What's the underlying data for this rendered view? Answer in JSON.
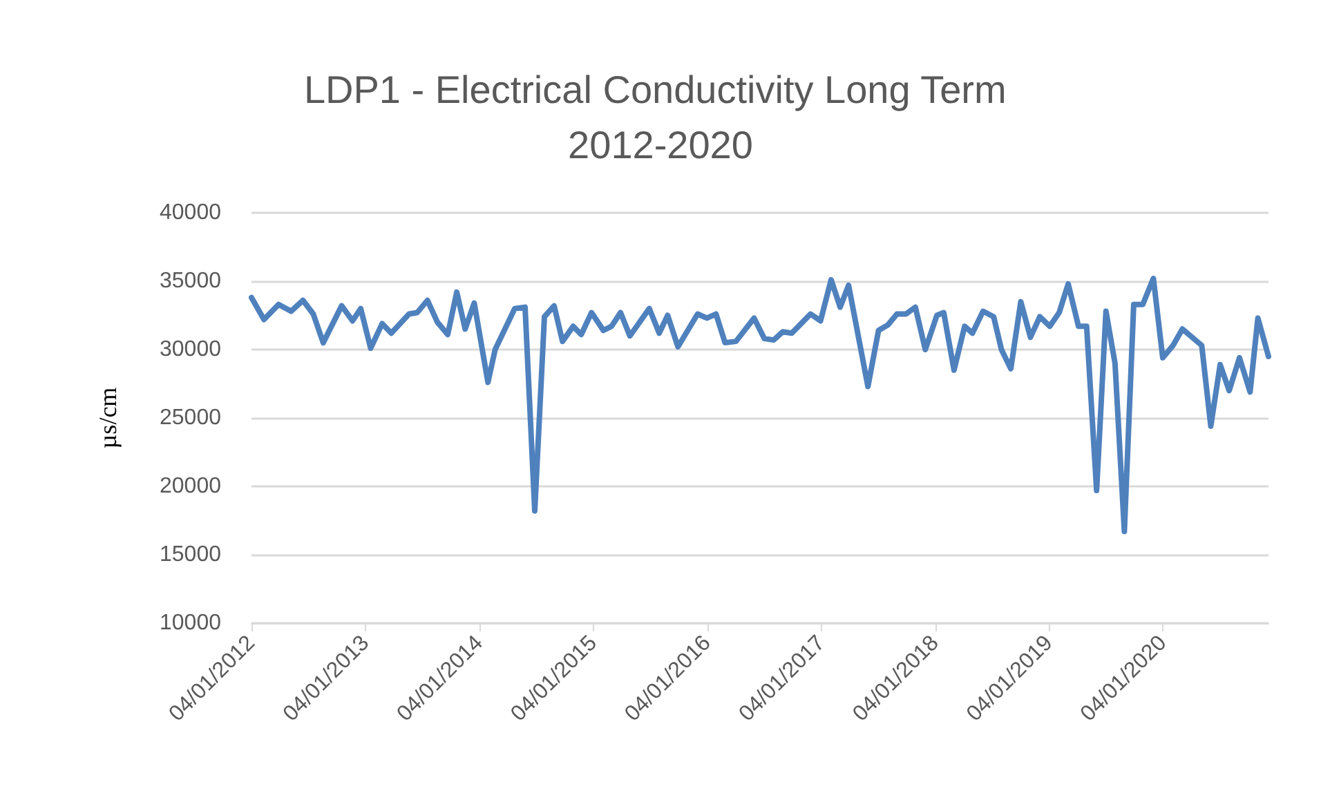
{
  "chart_data": {
    "type": "line",
    "title": "LDP1 - Electrical Conductivity Long Term 2012-2020",
    "ylabel": "µs/cm",
    "x": [
      "2012-01-04",
      "2012-02-13",
      "2012-03-31",
      "2012-05-10",
      "2012-06-17",
      "2012-07-20",
      "2012-08-21",
      "2012-10-19",
      "2012-11-23",
      "2012-12-19",
      "2013-01-20",
      "2013-02-26",
      "2013-03-27",
      "2013-05-23",
      "2013-06-18",
      "2013-07-21",
      "2013-08-22",
      "2013-09-24",
      "2013-10-23",
      "2013-11-19",
      "2013-12-18",
      "2014-01-31",
      "2014-02-23",
      "2014-04-27",
      "2014-05-30",
      "2014-06-30",
      "2014-07-31",
      "2014-08-31",
      "2014-09-27",
      "2014-10-31",
      "2014-11-26",
      "2014-12-29",
      "2015-02-05",
      "2015-03-03",
      "2015-04-01",
      "2015-05-01",
      "2015-07-02",
      "2015-08-03",
      "2015-08-30",
      "2015-10-02",
      "2015-12-04",
      "2016-01-03",
      "2016-02-01",
      "2016-03-01",
      "2016-04-05",
      "2016-06-02",
      "2016-07-05",
      "2016-08-04",
      "2016-09-02",
      "2016-10-01",
      "2016-10-31",
      "2016-11-30",
      "2017-01-01",
      "2017-02-04",
      "2017-03-05",
      "2017-04-01",
      "2017-06-02",
      "2017-07-06",
      "2017-08-05",
      "2017-09-03",
      "2017-10-02",
      "2017-11-01",
      "2017-12-03",
      "2018-01-09",
      "2018-01-31",
      "2018-03-05",
      "2018-04-08",
      "2018-05-03",
      "2018-06-06",
      "2018-07-10",
      "2018-08-04",
      "2018-09-03",
      "2018-10-05",
      "2018-11-05",
      "2018-12-05",
      "2019-01-06",
      "2019-02-05",
      "2019-03-06",
      "2019-04-08",
      "2019-05-04",
      "2019-06-05",
      "2019-07-05",
      "2019-08-03",
      "2019-09-02",
      "2019-10-02",
      "2019-10-31",
      "2019-12-04",
      "2020-01-03",
      "2020-02-05",
      "2020-03-06",
      "2020-05-07",
      "2020-06-05",
      "2020-07-05",
      "2020-08-03",
      "2020-09-05",
      "2020-10-09",
      "2020-11-03",
      "2020-12-07"
    ],
    "series": [
      {
        "color": "#4f81bd",
        "values": [
          33800,
          32200,
          33300,
          32800,
          33600,
          32600,
          30500,
          33200,
          32100,
          33000,
          30100,
          31900,
          31200,
          32600,
          32700,
          33600,
          32000,
          31100,
          34200,
          31500,
          33400,
          27600,
          30000,
          33000,
          33100,
          18200,
          32400,
          33200,
          30600,
          31700,
          31100,
          32700,
          31400,
          31700,
          32700,
          31000,
          33000,
          31200,
          32500,
          30200,
          32600,
          32300,
          32600,
          30500,
          30600,
          32300,
          30800,
          30700,
          31300,
          31200,
          31900,
          32600,
          32100,
          35100,
          33100,
          34700,
          27300,
          31400,
          31800,
          32600,
          32600,
          33100,
          30000,
          32500,
          32700,
          28500,
          31700,
          31200,
          32800,
          32400,
          30000,
          28600,
          33500,
          30900,
          32400,
          31700,
          32700,
          34800,
          31700,
          31700,
          19700,
          32800,
          29000,
          16700,
          33300,
          33300,
          35200,
          29400,
          30300,
          31500,
          30300,
          24400,
          28900,
          27000,
          29400,
          26900,
          32300,
          29500
        ]
      }
    ],
    "xlim": [
      "2012-01-04",
      "2020-12-07"
    ],
    "xticks": [
      {
        "value": "2012-01-04",
        "label": "04/01/2012"
      },
      {
        "value": "2013-01-04",
        "label": "04/01/2013"
      },
      {
        "value": "2014-01-04",
        "label": "04/01/2014"
      },
      {
        "value": "2015-01-04",
        "label": "04/01/2015"
      },
      {
        "value": "2016-01-04",
        "label": "04/01/2016"
      },
      {
        "value": "2017-01-04",
        "label": "04/01/2017"
      },
      {
        "value": "2018-01-04",
        "label": "04/01/2018"
      },
      {
        "value": "2019-01-04",
        "label": "04/01/2019"
      },
      {
        "value": "2020-01-04",
        "label": "04/01/2020"
      }
    ],
    "ylim": [
      10000,
      40000
    ],
    "yticks": [
      10000,
      15000,
      20000,
      25000,
      30000,
      35000,
      40000
    ],
    "grid": "y",
    "marker": "none",
    "line_style": "solid"
  }
}
